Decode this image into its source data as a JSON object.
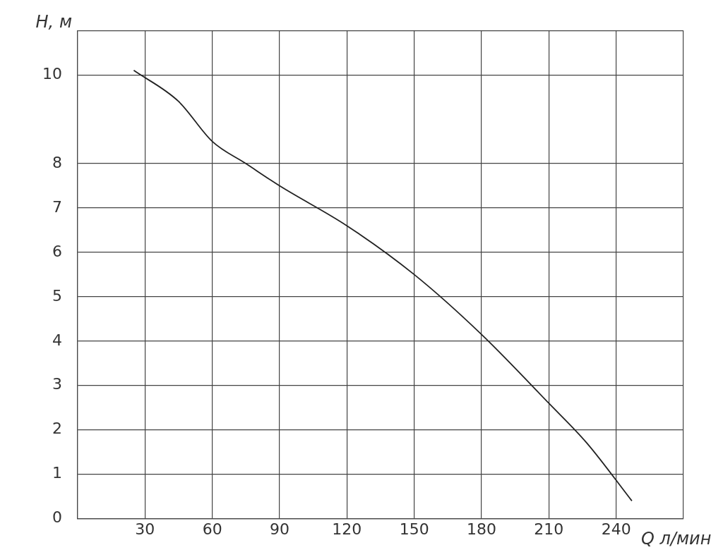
{
  "chart_data": {
    "type": "line",
    "xlabel": "Q л/мин",
    "ylabel": "H, м",
    "x": [
      25,
      45,
      60,
      75,
      90,
      120,
      150,
      180,
      210,
      227,
      247
    ],
    "series": [
      {
        "color": "#222222",
        "values": [
          10.1,
          9.4,
          8.5,
          8,
          7.5,
          6.6,
          5.5,
          4.15,
          2.6,
          1.7,
          0.4
        ]
      }
    ],
    "xlim": [
      0,
      270
    ],
    "xticks": [
      {
        "value": 0,
        "label": null
      },
      30,
      60,
      90,
      120,
      150,
      180,
      210,
      240,
      {
        "value": 270,
        "label": null
      }
    ],
    "ylim": [
      0,
      11
    ],
    "yticks": [
      0,
      1,
      2,
      3,
      4,
      5,
      6,
      7,
      8,
      10,
      {
        "value": 11,
        "label": null
      }
    ],
    "grid": true,
    "legend": false,
    "marker": "none",
    "line_style": "solid"
  }
}
